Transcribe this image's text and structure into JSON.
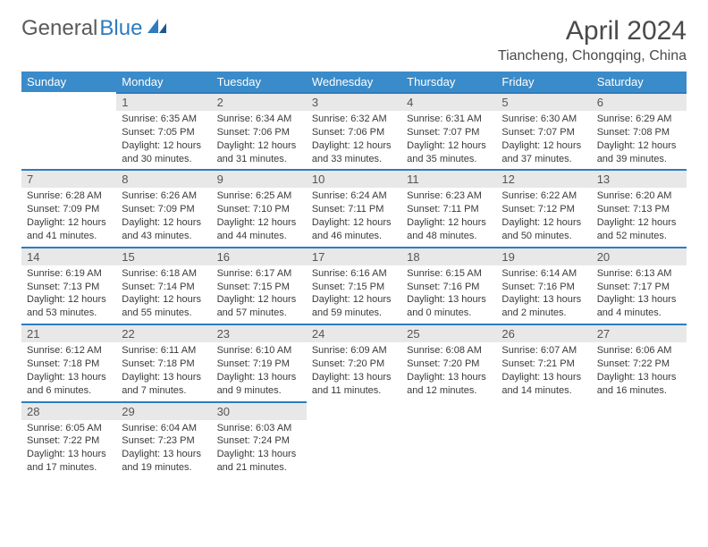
{
  "brand": {
    "text1": "General",
    "text2": "Blue"
  },
  "title": "April 2024",
  "location": "Tiancheng, Chongqing, China",
  "colors": {
    "header_bg": "#3a8bc9",
    "header_text": "#ffffff",
    "day_num_bg": "#e8e8e8",
    "day_border": "#2d7cc0",
    "text": "#3a3a3a"
  },
  "weekdays": [
    "Sunday",
    "Monday",
    "Tuesday",
    "Wednesday",
    "Thursday",
    "Friday",
    "Saturday"
  ],
  "weeks": [
    [
      {
        "n": "",
        "sr": "",
        "ss": "",
        "d1": "",
        "d2": "",
        "empty": true
      },
      {
        "n": "1",
        "sr": "Sunrise: 6:35 AM",
        "ss": "Sunset: 7:05 PM",
        "d1": "Daylight: 12 hours",
        "d2": "and 30 minutes."
      },
      {
        "n": "2",
        "sr": "Sunrise: 6:34 AM",
        "ss": "Sunset: 7:06 PM",
        "d1": "Daylight: 12 hours",
        "d2": "and 31 minutes."
      },
      {
        "n": "3",
        "sr": "Sunrise: 6:32 AM",
        "ss": "Sunset: 7:06 PM",
        "d1": "Daylight: 12 hours",
        "d2": "and 33 minutes."
      },
      {
        "n": "4",
        "sr": "Sunrise: 6:31 AM",
        "ss": "Sunset: 7:07 PM",
        "d1": "Daylight: 12 hours",
        "d2": "and 35 minutes."
      },
      {
        "n": "5",
        "sr": "Sunrise: 6:30 AM",
        "ss": "Sunset: 7:07 PM",
        "d1": "Daylight: 12 hours",
        "d2": "and 37 minutes."
      },
      {
        "n": "6",
        "sr": "Sunrise: 6:29 AM",
        "ss": "Sunset: 7:08 PM",
        "d1": "Daylight: 12 hours",
        "d2": "and 39 minutes."
      }
    ],
    [
      {
        "n": "7",
        "sr": "Sunrise: 6:28 AM",
        "ss": "Sunset: 7:09 PM",
        "d1": "Daylight: 12 hours",
        "d2": "and 41 minutes."
      },
      {
        "n": "8",
        "sr": "Sunrise: 6:26 AM",
        "ss": "Sunset: 7:09 PM",
        "d1": "Daylight: 12 hours",
        "d2": "and 43 minutes."
      },
      {
        "n": "9",
        "sr": "Sunrise: 6:25 AM",
        "ss": "Sunset: 7:10 PM",
        "d1": "Daylight: 12 hours",
        "d2": "and 44 minutes."
      },
      {
        "n": "10",
        "sr": "Sunrise: 6:24 AM",
        "ss": "Sunset: 7:11 PM",
        "d1": "Daylight: 12 hours",
        "d2": "and 46 minutes."
      },
      {
        "n": "11",
        "sr": "Sunrise: 6:23 AM",
        "ss": "Sunset: 7:11 PM",
        "d1": "Daylight: 12 hours",
        "d2": "and 48 minutes."
      },
      {
        "n": "12",
        "sr": "Sunrise: 6:22 AM",
        "ss": "Sunset: 7:12 PM",
        "d1": "Daylight: 12 hours",
        "d2": "and 50 minutes."
      },
      {
        "n": "13",
        "sr": "Sunrise: 6:20 AM",
        "ss": "Sunset: 7:13 PM",
        "d1": "Daylight: 12 hours",
        "d2": "and 52 minutes."
      }
    ],
    [
      {
        "n": "14",
        "sr": "Sunrise: 6:19 AM",
        "ss": "Sunset: 7:13 PM",
        "d1": "Daylight: 12 hours",
        "d2": "and 53 minutes."
      },
      {
        "n": "15",
        "sr": "Sunrise: 6:18 AM",
        "ss": "Sunset: 7:14 PM",
        "d1": "Daylight: 12 hours",
        "d2": "and 55 minutes."
      },
      {
        "n": "16",
        "sr": "Sunrise: 6:17 AM",
        "ss": "Sunset: 7:15 PM",
        "d1": "Daylight: 12 hours",
        "d2": "and 57 minutes."
      },
      {
        "n": "17",
        "sr": "Sunrise: 6:16 AM",
        "ss": "Sunset: 7:15 PM",
        "d1": "Daylight: 12 hours",
        "d2": "and 59 minutes."
      },
      {
        "n": "18",
        "sr": "Sunrise: 6:15 AM",
        "ss": "Sunset: 7:16 PM",
        "d1": "Daylight: 13 hours",
        "d2": "and 0 minutes."
      },
      {
        "n": "19",
        "sr": "Sunrise: 6:14 AM",
        "ss": "Sunset: 7:16 PM",
        "d1": "Daylight: 13 hours",
        "d2": "and 2 minutes."
      },
      {
        "n": "20",
        "sr": "Sunrise: 6:13 AM",
        "ss": "Sunset: 7:17 PM",
        "d1": "Daylight: 13 hours",
        "d2": "and 4 minutes."
      }
    ],
    [
      {
        "n": "21",
        "sr": "Sunrise: 6:12 AM",
        "ss": "Sunset: 7:18 PM",
        "d1": "Daylight: 13 hours",
        "d2": "and 6 minutes."
      },
      {
        "n": "22",
        "sr": "Sunrise: 6:11 AM",
        "ss": "Sunset: 7:18 PM",
        "d1": "Daylight: 13 hours",
        "d2": "and 7 minutes."
      },
      {
        "n": "23",
        "sr": "Sunrise: 6:10 AM",
        "ss": "Sunset: 7:19 PM",
        "d1": "Daylight: 13 hours",
        "d2": "and 9 minutes."
      },
      {
        "n": "24",
        "sr": "Sunrise: 6:09 AM",
        "ss": "Sunset: 7:20 PM",
        "d1": "Daylight: 13 hours",
        "d2": "and 11 minutes."
      },
      {
        "n": "25",
        "sr": "Sunrise: 6:08 AM",
        "ss": "Sunset: 7:20 PM",
        "d1": "Daylight: 13 hours",
        "d2": "and 12 minutes."
      },
      {
        "n": "26",
        "sr": "Sunrise: 6:07 AM",
        "ss": "Sunset: 7:21 PM",
        "d1": "Daylight: 13 hours",
        "d2": "and 14 minutes."
      },
      {
        "n": "27",
        "sr": "Sunrise: 6:06 AM",
        "ss": "Sunset: 7:22 PM",
        "d1": "Daylight: 13 hours",
        "d2": "and 16 minutes."
      }
    ],
    [
      {
        "n": "28",
        "sr": "Sunrise: 6:05 AM",
        "ss": "Sunset: 7:22 PM",
        "d1": "Daylight: 13 hours",
        "d2": "and 17 minutes."
      },
      {
        "n": "29",
        "sr": "Sunrise: 6:04 AM",
        "ss": "Sunset: 7:23 PM",
        "d1": "Daylight: 13 hours",
        "d2": "and 19 minutes."
      },
      {
        "n": "30",
        "sr": "Sunrise: 6:03 AM",
        "ss": "Sunset: 7:24 PM",
        "d1": "Daylight: 13 hours",
        "d2": "and 21 minutes."
      },
      {
        "n": "",
        "sr": "",
        "ss": "",
        "d1": "",
        "d2": "",
        "empty": true
      },
      {
        "n": "",
        "sr": "",
        "ss": "",
        "d1": "",
        "d2": "",
        "empty": true
      },
      {
        "n": "",
        "sr": "",
        "ss": "",
        "d1": "",
        "d2": "",
        "empty": true
      },
      {
        "n": "",
        "sr": "",
        "ss": "",
        "d1": "",
        "d2": "",
        "empty": true
      }
    ]
  ]
}
